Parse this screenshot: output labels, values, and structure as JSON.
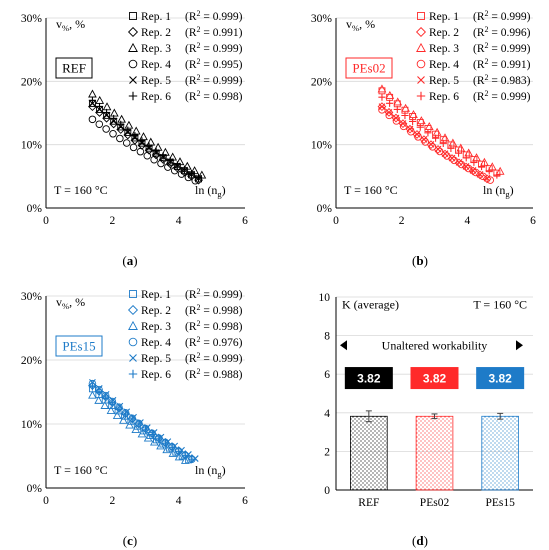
{
  "colors": {
    "REF": "#000000",
    "PEs02": "#ff2a2a",
    "PEs15": "#1e7bc8"
  },
  "panels": [
    {
      "id": "a",
      "caption": "a",
      "y_var": "v",
      "y_sub": "%",
      "y_unit": ", %",
      "box_label": "REF",
      "temp_label": "T = 160 °C",
      "x_label": "ln (n",
      "x_label_sub": "g",
      "x_label_end": ")",
      "legend": [
        {
          "name": "Rep. 1",
          "marker": "square",
          "r2": "0.999"
        },
        {
          "name": "Rep. 2",
          "marker": "diamond",
          "r2": "0.991"
        },
        {
          "name": "Rep. 3",
          "marker": "triangle",
          "r2": "0.999"
        },
        {
          "name": "Rep. 4",
          "marker": "circle",
          "r2": "0.995"
        },
        {
          "name": "Rep. 5",
          "marker": "x",
          "r2": "0.999"
        },
        {
          "name": "Rep. 6",
          "marker": "plus",
          "r2": "0.998"
        }
      ]
    },
    {
      "id": "b",
      "caption": "b",
      "y_var": "v",
      "y_sub": "%",
      "y_unit": ", %",
      "box_label": "PEs02",
      "temp_label": "T = 160 °C",
      "x_label": "ln (n",
      "x_label_sub": "g",
      "x_label_end": ")",
      "legend": [
        {
          "name": "Rep. 1",
          "marker": "square",
          "r2": "0.999"
        },
        {
          "name": "Rep. 2",
          "marker": "diamond",
          "r2": "0.996"
        },
        {
          "name": "Rep. 3",
          "marker": "triangle",
          "r2": "0.999"
        },
        {
          "name": "Rep. 4",
          "marker": "circle",
          "r2": "0.991"
        },
        {
          "name": "Rep. 5",
          "marker": "x",
          "r2": "0.983"
        },
        {
          "name": "Rep. 6",
          "marker": "plus",
          "r2": "0.999"
        }
      ]
    },
    {
      "id": "c",
      "caption": "c",
      "y_var": "v",
      "y_sub": "%",
      "y_unit": ", %",
      "box_label": "PEs15",
      "temp_label": "T = 160 °C",
      "x_label": "ln (n",
      "x_label_sub": "g",
      "x_label_end": ")",
      "legend": [
        {
          "name": "Rep. 1",
          "marker": "square",
          "r2": "0.999"
        },
        {
          "name": "Rep. 2",
          "marker": "diamond",
          "r2": "0.998"
        },
        {
          "name": "Rep. 3",
          "marker": "triangle",
          "r2": "0.998"
        },
        {
          "name": "Rep. 4",
          "marker": "circle",
          "r2": "0.976"
        },
        {
          "name": "Rep. 5",
          "marker": "x",
          "r2": "0.999"
        },
        {
          "name": "Rep. 6",
          "marker": "plus",
          "r2": "0.988"
        }
      ]
    },
    {
      "id": "d",
      "caption": "d",
      "y_title": "K (average)",
      "temp_label": "T = 160 °C",
      "arrow_text": "Unaltered workability"
    }
  ],
  "chart_data": [
    {
      "type": "scatter",
      "panel": "a",
      "xlim": [
        0,
        6
      ],
      "ylim": [
        0,
        30
      ],
      "x_ticks": [
        0,
        2,
        4,
        6
      ],
      "y_ticks": [
        "0%",
        "10%",
        "20%",
        "30%"
      ],
      "y_tick_values": [
        0,
        10,
        20,
        30
      ],
      "series": [
        {
          "name": "Rep. 1",
          "start": [
            1.4,
            16.5
          ],
          "end": [
            4.6,
            4.6
          ]
        },
        {
          "name": "Rep. 2",
          "start": [
            1.4,
            16.0
          ],
          "end": [
            4.6,
            4.4
          ]
        },
        {
          "name": "Rep. 3",
          "start": [
            1.4,
            18.0
          ],
          "end": [
            4.7,
            5.2
          ]
        },
        {
          "name": "Rep. 4",
          "start": [
            1.4,
            14.0
          ],
          "end": [
            4.5,
            4.3
          ]
        },
        {
          "name": "Rep. 5",
          "start": [
            1.4,
            16.5
          ],
          "end": [
            4.6,
            4.7
          ]
        },
        {
          "name": "Rep. 6",
          "start": [
            1.4,
            17.0
          ],
          "end": [
            4.6,
            4.8
          ]
        }
      ]
    },
    {
      "type": "scatter",
      "panel": "b",
      "xlim": [
        0,
        6
      ],
      "ylim": [
        0,
        30
      ],
      "x_ticks": [
        0,
        2,
        4,
        6
      ],
      "y_ticks": [
        "0%",
        "10%",
        "20%",
        "30%"
      ],
      "y_tick_values": [
        0,
        10,
        20,
        30
      ],
      "series": [
        {
          "name": "Rep. 1",
          "start": [
            1.4,
            18.5
          ],
          "end": [
            4.9,
            5.5
          ]
        },
        {
          "name": "Rep. 2",
          "start": [
            1.4,
            16.0
          ],
          "end": [
            4.6,
            4.6
          ]
        },
        {
          "name": "Rep. 3",
          "start": [
            1.4,
            18.8
          ],
          "end": [
            5.0,
            5.8
          ]
        },
        {
          "name": "Rep. 4",
          "start": [
            1.4,
            15.5
          ],
          "end": [
            4.7,
            4.4
          ]
        },
        {
          "name": "Rep. 5",
          "start": [
            1.4,
            16.0
          ],
          "end": [
            4.6,
            4.7
          ]
        },
        {
          "name": "Rep. 6",
          "start": [
            1.4,
            17.5
          ],
          "end": [
            4.9,
            5.2
          ]
        }
      ]
    },
    {
      "type": "scatter",
      "panel": "c",
      "xlim": [
        0,
        6
      ],
      "ylim": [
        0,
        30
      ],
      "x_ticks": [
        0,
        2,
        4,
        6
      ],
      "y_ticks": [
        "0%",
        "10%",
        "20%",
        "30%"
      ],
      "y_tick_values": [
        0,
        10,
        20,
        30
      ],
      "series": [
        {
          "name": "Rep. 1",
          "start": [
            1.4,
            15.5
          ],
          "end": [
            4.3,
            4.4
          ]
        },
        {
          "name": "Rep. 2",
          "start": [
            1.4,
            16.0
          ],
          "end": [
            4.4,
            4.6
          ]
        },
        {
          "name": "Rep. 3",
          "start": [
            1.4,
            14.5
          ],
          "end": [
            4.2,
            4.3
          ]
        },
        {
          "name": "Rep. 4",
          "start": [
            1.4,
            16.3
          ],
          "end": [
            4.4,
            4.5
          ]
        },
        {
          "name": "Rep. 5",
          "start": [
            1.4,
            16.5
          ],
          "end": [
            4.5,
            4.6
          ]
        },
        {
          "name": "Rep. 6",
          "start": [
            1.4,
            15.8
          ],
          "end": [
            4.4,
            4.5
          ]
        }
      ]
    },
    {
      "type": "bar",
      "panel": "d",
      "categories": [
        "REF",
        "PEs02",
        "PEs15"
      ],
      "values": [
        3.82,
        3.82,
        3.82
      ],
      "value_labels": [
        "3.82",
        "3.82",
        "3.82"
      ],
      "errors": [
        0.28,
        0.12,
        0.15
      ],
      "ylim": [
        0,
        10
      ],
      "y_ticks": [
        0,
        2,
        4,
        6,
        8,
        10
      ]
    }
  ]
}
